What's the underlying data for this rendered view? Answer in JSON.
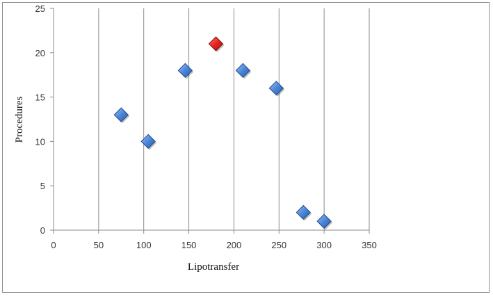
{
  "chart_data": {
    "type": "scatter",
    "title": "",
    "xlabel": "Lipotransfer",
    "ylabel": "Procedures",
    "xlim": [
      0,
      350
    ],
    "ylim": [
      0,
      25
    ],
    "x_ticks": [
      0,
      50,
      100,
      150,
      200,
      250,
      300,
      350
    ],
    "y_ticks": [
      0,
      5,
      10,
      15,
      20,
      25
    ],
    "vertical_grid": true,
    "horizontal_grid": false,
    "legend": "none",
    "marker": "diamond",
    "points": [
      {
        "x": 75,
        "y": 13,
        "color": "#4a86d8"
      },
      {
        "x": 105,
        "y": 10,
        "color": "#4a86d8"
      },
      {
        "x": 146,
        "y": 18,
        "color": "#4a86d8"
      },
      {
        "x": 180,
        "y": 21,
        "color": "#e8231c"
      },
      {
        "x": 210,
        "y": 18,
        "color": "#4a86d8"
      },
      {
        "x": 247,
        "y": 16,
        "color": "#4a86d8"
      },
      {
        "x": 277,
        "y": 2,
        "color": "#4a86d8"
      },
      {
        "x": 300,
        "y": 1,
        "color": "#4a86d8"
      }
    ],
    "colors": {
      "default_point": "#4a86d8",
      "highlight_point": "#e8231c",
      "gridline": "#8a8a8a"
    }
  }
}
